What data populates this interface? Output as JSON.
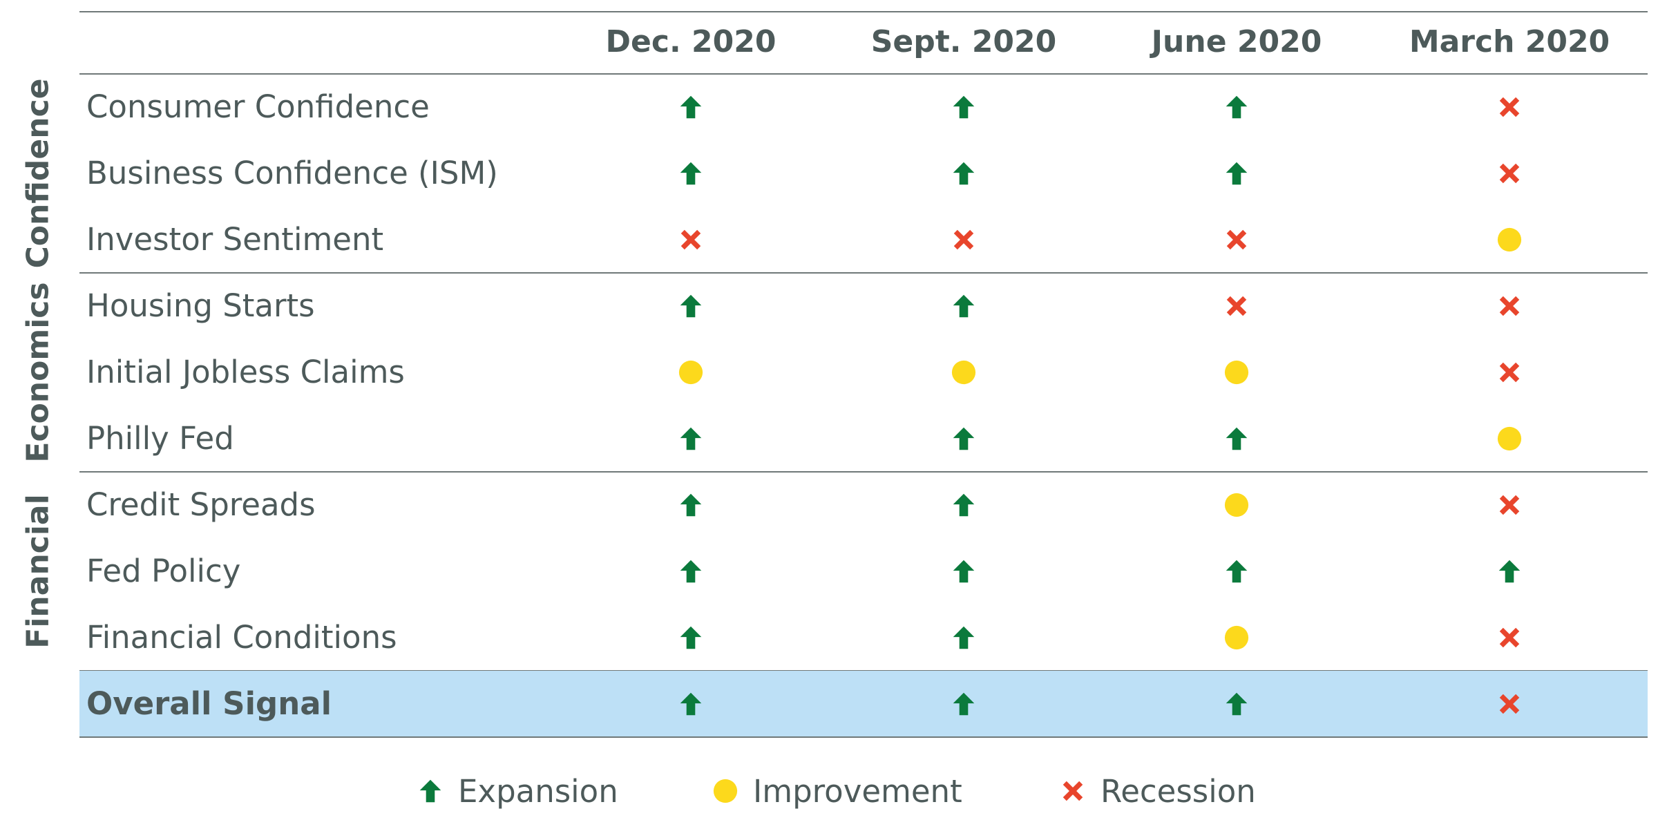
{
  "chart_data": {
    "type": "table",
    "columns": [
      "Dec. 2020",
      "Sept. 2020",
      "June 2020",
      "March 2020"
    ],
    "groups": [
      {
        "name": "Confidence",
        "rows": [
          {
            "label": "Consumer Confidence",
            "signals": [
              "expansion",
              "expansion",
              "expansion",
              "recession"
            ]
          },
          {
            "label": "Business Confidence (ISM)",
            "signals": [
              "expansion",
              "expansion",
              "expansion",
              "recession"
            ]
          },
          {
            "label": "Investor Sentiment",
            "signals": [
              "recession",
              "recession",
              "recession",
              "improvement"
            ]
          }
        ]
      },
      {
        "name": "Economics",
        "rows": [
          {
            "label": "Housing Starts",
            "signals": [
              "expansion",
              "expansion",
              "recession",
              "recession"
            ]
          },
          {
            "label": "Initial Jobless Claims",
            "signals": [
              "improvement",
              "improvement",
              "improvement",
              "recession"
            ]
          },
          {
            "label": "Philly Fed",
            "signals": [
              "expansion",
              "expansion",
              "expansion",
              "improvement"
            ]
          }
        ]
      },
      {
        "name": "Financial",
        "rows": [
          {
            "label": "Credit Spreads",
            "signals": [
              "expansion",
              "expansion",
              "improvement",
              "recession"
            ]
          },
          {
            "label": "Fed Policy",
            "signals": [
              "expansion",
              "expansion",
              "expansion",
              "expansion"
            ]
          },
          {
            "label": "Financial Conditions",
            "signals": [
              "expansion",
              "expansion",
              "improvement",
              "recession"
            ]
          }
        ]
      }
    ],
    "overall": {
      "label": "Overall Signal",
      "signals": [
        "expansion",
        "expansion",
        "expansion",
        "recession"
      ]
    },
    "legend": [
      {
        "key": "expansion",
        "label": "Expansion",
        "icon": "up-arrow-icon"
      },
      {
        "key": "improvement",
        "label": "Improvement",
        "icon": "yellow-dot-icon"
      },
      {
        "key": "recession",
        "label": "Recession",
        "icon": "red-x-icon"
      }
    ],
    "colors": {
      "expansion": "#0b7a3c",
      "improvement": "#fcd91c",
      "recession": "#e8452c",
      "overall_highlight": "#bde0f6",
      "text": "#4d5a5a",
      "rule": "#6f7878"
    }
  }
}
